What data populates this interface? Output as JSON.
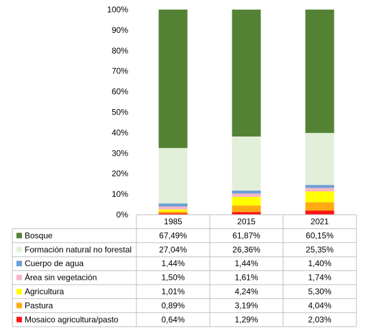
{
  "chart_data": {
    "type": "bar",
    "stacked": true,
    "percent_stacked": true,
    "categories": [
      "1985",
      "2015",
      "2021"
    ],
    "ylim": [
      0,
      100
    ],
    "y_ticks": [
      "0%",
      "10%",
      "20%",
      "30%",
      "40%",
      "50%",
      "60%",
      "70%",
      "80%",
      "90%",
      "100%"
    ],
    "grid": false,
    "legend_placement": "data-table-left",
    "series": [
      {
        "name": "Mosaico agricultura/pasto",
        "color": "#ff0000",
        "pattern": "dots",
        "values": [
          0.64,
          1.29,
          2.03
        ],
        "labels": [
          "0,64%",
          "1,29%",
          "2,03%"
        ]
      },
      {
        "name": "Pastura",
        "color": "#ffa500",
        "pattern": "dots",
        "values": [
          0.89,
          3.19,
          4.04
        ],
        "labels": [
          "0,89%",
          "3,19%",
          "4,04%"
        ]
      },
      {
        "name": "Agricultura",
        "color": "#ffff00",
        "pattern": "solid",
        "values": [
          1.01,
          4.24,
          5.3
        ],
        "labels": [
          "1,01%",
          "4,24%",
          "5,30%"
        ]
      },
      {
        "name": "Área sin vegetación",
        "color": "#f4b6c8",
        "pattern": "solid",
        "values": [
          1.5,
          1.61,
          1.74
        ],
        "labels": [
          "1,50%",
          "1,61%",
          "1,74%"
        ]
      },
      {
        "name": "Cuerpo de agua",
        "color": "#6a9fd4",
        "pattern": "solid",
        "values": [
          1.44,
          1.44,
          1.4
        ],
        "labels": [
          "1,44%",
          "1,44%",
          "1,40%"
        ]
      },
      {
        "name": "Formación natural no forestal",
        "color": "#e2efd9",
        "pattern": "solid",
        "values": [
          27.04,
          26.36,
          25.35
        ],
        "labels": [
          "27,04%",
          "26,36%",
          "25,35%"
        ]
      },
      {
        "name": "Bosque",
        "color": "#548235",
        "pattern": "solid",
        "values": [
          67.49,
          61.87,
          60.15
        ],
        "labels": [
          "67,49%",
          "61,87%",
          "60,15%"
        ]
      }
    ]
  }
}
